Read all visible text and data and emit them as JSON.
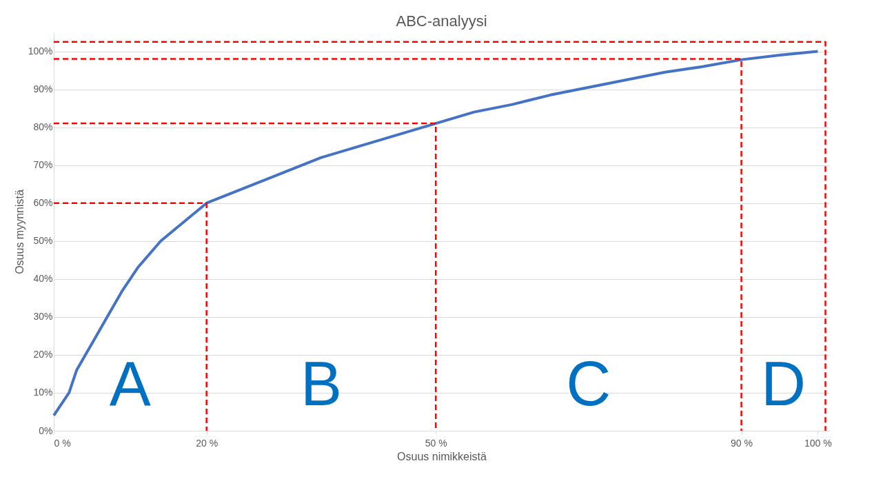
{
  "chart_data": {
    "type": "line",
    "title": "ABC-analyysi",
    "xlabel": "Osuus nimikkeistä",
    "ylabel": "Osuus myynnistä",
    "xlim": [
      0,
      101.5
    ],
    "ylim": [
      0,
      105
    ],
    "xticks": [
      {
        "value": 0,
        "label": "0 %"
      },
      {
        "value": 20,
        "label": "20 %"
      },
      {
        "value": 50,
        "label": "50 %"
      },
      {
        "value": 90,
        "label": "90 %"
      },
      {
        "value": 100,
        "label": "100 %"
      }
    ],
    "yticks": [
      {
        "value": 0,
        "label": "0%"
      },
      {
        "value": 10,
        "label": "10%"
      },
      {
        "value": 20,
        "label": "20%"
      },
      {
        "value": 30,
        "label": "30%"
      },
      {
        "value": 40,
        "label": "40%"
      },
      {
        "value": 50,
        "label": "50%"
      },
      {
        "value": 60,
        "label": "60%"
      },
      {
        "value": 70,
        "label": "70%"
      },
      {
        "value": 80,
        "label": "80%"
      },
      {
        "value": 90,
        "label": "90%"
      },
      {
        "value": 100,
        "label": "100%"
      }
    ],
    "grid": "y",
    "marker": "none",
    "series": [
      {
        "color": "#4472c4",
        "line_style": "solid",
        "x": [
          0,
          2,
          3,
          5,
          7,
          9,
          11,
          14,
          17,
          20,
          25,
          30,
          35,
          40,
          45,
          50,
          55,
          60,
          65,
          70,
          75,
          80,
          85,
          90,
          95,
          100
        ],
        "values": [
          4,
          10,
          16,
          23,
          30,
          37,
          43,
          50,
          55,
          60,
          64,
          68,
          72,
          75,
          78,
          81,
          84,
          86,
          88.5,
          90.5,
          92.5,
          94.5,
          96,
          97.8,
          99,
          100
        ]
      },
      {
        "color": "#ff0000",
        "line_style": "dashed",
        "x": [
          0,
          20,
          20
        ],
        "values": [
          60,
          60,
          0
        ]
      },
      {
        "color": "#ff0000",
        "line_style": "dashed",
        "x": [
          0,
          50,
          50
        ],
        "values": [
          81,
          81,
          0
        ]
      },
      {
        "color": "#ff0000",
        "line_style": "dashed",
        "x": [
          0,
          90,
          90
        ],
        "values": [
          98,
          98,
          0
        ]
      },
      {
        "color": "#ff0000",
        "line_style": "dashed",
        "x": [
          0,
          101,
          101
        ],
        "values": [
          102.5,
          102.5,
          0
        ]
      }
    ],
    "annotations": [
      "A",
      "B",
      "C",
      "D"
    ]
  }
}
